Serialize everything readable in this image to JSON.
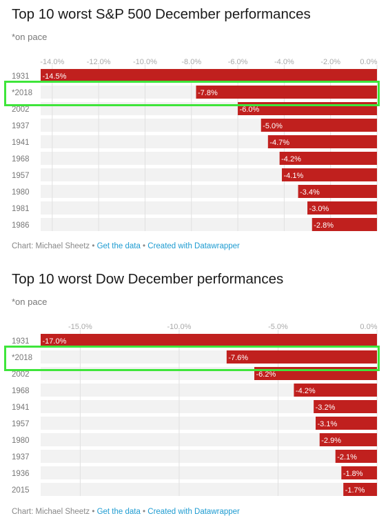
{
  "footer": {
    "credit": "Chart: Michael Sheetz",
    "separator": " • ",
    "get_data": "Get the data",
    "created_with": "Created with Datawrapper"
  },
  "colors": {
    "bar": "#c0201e",
    "row_background": "#f2f2f2",
    "gridline": "#e0e0e0",
    "highlight_outline": "#3ee53a",
    "link": "#1d9bd1"
  },
  "chart_data": [
    {
      "type": "bar",
      "orientation": "horizontal",
      "title": "Top 10 worst S&P 500 December performances",
      "subtitle": "*on pace",
      "categories": [
        "1931",
        "*2018",
        "2002",
        "1937",
        "1941",
        "1968",
        "1957",
        "1980",
        "1981",
        "1986"
      ],
      "values": [
        -14.5,
        -7.8,
        -6.0,
        -5.0,
        -4.7,
        -4.2,
        -4.1,
        -3.4,
        -3.0,
        -2.8
      ],
      "value_labels": [
        "-14.5%",
        "-7.8%",
        "-6.0%",
        "-5.0%",
        "-4.7%",
        "-4.2%",
        "-4.1%",
        "-3.4%",
        "-3.0%",
        "-2.8%"
      ],
      "xlim": [
        -14.5,
        0
      ],
      "xticks": [
        -14,
        -12,
        -10,
        -8,
        -6,
        -4,
        -2,
        0
      ],
      "xtick_labels": [
        "-14.0%",
        "-12.0%",
        "-10.0%",
        "-8.0%",
        "-6.0%",
        "-4.0%",
        "-2.0%",
        "0.0%"
      ],
      "xlabel": "",
      "ylabel": "",
      "grid": true,
      "highlighted_category": "*2018"
    },
    {
      "type": "bar",
      "orientation": "horizontal",
      "title": "Top 10 worst Dow December performances",
      "subtitle": "*on pace",
      "categories": [
        "1931",
        "*2018",
        "2002",
        "1968",
        "1941",
        "1957",
        "1980",
        "1937",
        "1936",
        "2015"
      ],
      "values": [
        -17.0,
        -7.6,
        -6.2,
        -4.2,
        -3.2,
        -3.1,
        -2.9,
        -2.1,
        -1.8,
        -1.7
      ],
      "value_labels": [
        "-17.0%",
        "-7.6%",
        "-6.2%",
        "-4.2%",
        "-3.2%",
        "-3.1%",
        "-2.9%",
        "-2.1%",
        "-1.8%",
        "-1.7%"
      ],
      "xlim": [
        -17.0,
        0
      ],
      "xticks": [
        -15,
        -10,
        -5,
        0
      ],
      "xtick_labels": [
        "-15.0%",
        "-10.0%",
        "-5.0%",
        "0.0%"
      ],
      "xlabel": "",
      "ylabel": "",
      "grid": true,
      "highlighted_category": "*2018"
    }
  ]
}
